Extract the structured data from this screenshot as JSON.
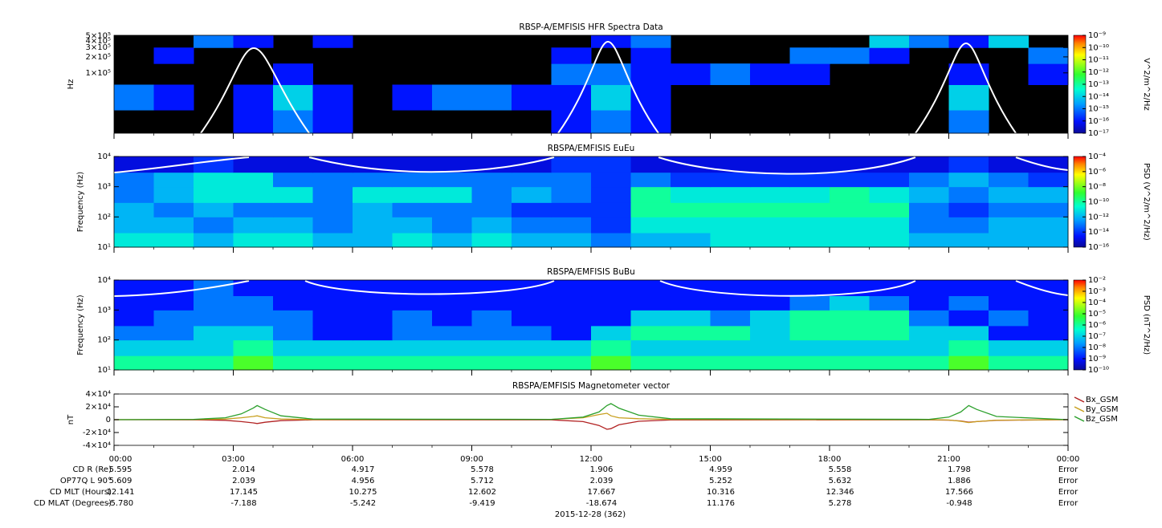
{
  "chart_data": [
    {
      "type": "heatmap",
      "title": "RBSP-A/EMFISIS  HFR Spectra Data",
      "ylabel": "Hz",
      "ylog": true,
      "ylim": [
        7300,
        510000
      ],
      "yticks": [
        {
          "value": 100000,
          "label": "1×10⁵"
        },
        {
          "value": 200000,
          "label": "2×10⁵"
        },
        {
          "value": 300000,
          "label": "3×10⁵"
        },
        {
          "value": 400000,
          "label": "4×10⁵"
        },
        {
          "value": 500000,
          "label": "5×10⁵"
        }
      ],
      "xbins": [
        0,
        1,
        2,
        3,
        4,
        5,
        6,
        7,
        8,
        9,
        10,
        11,
        12,
        13,
        14,
        15,
        16,
        17,
        18,
        19,
        20,
        21,
        22,
        23,
        24
      ],
      "ybins": [
        7300,
        20000,
        60000,
        150000,
        300000,
        510000
      ],
      "z": [
        [
          null,
          null,
          null,
          1e-16,
          1e-15,
          1e-16,
          null,
          null,
          null,
          null,
          null,
          1e-16,
          1e-15,
          1e-16,
          null,
          null,
          null,
          null,
          null,
          null,
          null,
          1e-15,
          null,
          null
        ],
        [
          1e-15,
          1e-16,
          null,
          1e-16,
          1e-14,
          1e-16,
          null,
          1e-16,
          1e-15,
          1e-15,
          1e-16,
          1e-16,
          1e-14,
          1e-16,
          null,
          null,
          null,
          null,
          null,
          null,
          null,
          1e-14,
          null,
          null
        ],
        [
          null,
          null,
          null,
          null,
          1e-16,
          null,
          null,
          null,
          null,
          null,
          null,
          1e-15,
          1e-15,
          1e-16,
          1e-16,
          1e-15,
          1e-16,
          1e-16,
          null,
          null,
          null,
          1e-16,
          null,
          1e-16
        ],
        [
          null,
          1e-16,
          null,
          null,
          null,
          null,
          null,
          null,
          null,
          null,
          null,
          1e-16,
          null,
          1e-16,
          null,
          null,
          null,
          1e-15,
          1e-15,
          1e-16,
          null,
          null,
          null,
          1e-15
        ],
        [
          null,
          null,
          1e-15,
          1e-16,
          null,
          1e-16,
          null,
          null,
          null,
          null,
          null,
          null,
          1e-16,
          1e-15,
          null,
          null,
          null,
          null,
          null,
          1e-14,
          1e-15,
          1e-16,
          1e-14,
          null
        ]
      ],
      "zlog": true,
      "zlim": [
        1e-17,
        1e-09
      ],
      "zlabel": "V^2/m^2/Hz",
      "zticks": [
        {
          "value": 1e-09,
          "label": "10⁻⁹"
        },
        {
          "value": 1e-10,
          "label": "10⁻¹⁰"
        },
        {
          "value": 1e-11,
          "label": "10⁻¹¹"
        },
        {
          "value": 1e-12,
          "label": "10⁻¹²"
        },
        {
          "value": 1e-13,
          "label": "10⁻¹³"
        },
        {
          "value": 1e-14,
          "label": "10⁻¹⁴"
        },
        {
          "value": 1e-15,
          "label": "10⁻¹⁵"
        },
        {
          "value": 1e-16,
          "label": "10⁻¹⁶"
        },
        {
          "value": 1e-17,
          "label": "10⁻¹⁷"
        }
      ]
    },
    {
      "type": "heatmap",
      "title": "RBSPA/EMFISIS  EuEu",
      "ylabel": "Frequency (Hz)",
      "ylog": true,
      "ylim": [
        10,
        10000
      ],
      "yticks": [
        {
          "value": 10,
          "label": "10¹"
        },
        {
          "value": 100,
          "label": "10²"
        },
        {
          "value": 1000,
          "label": "10³"
        },
        {
          "value": 10000,
          "label": "10⁴"
        }
      ],
      "xbins": [
        0,
        1,
        2,
        3,
        4,
        5,
        6,
        7,
        8,
        9,
        10,
        11,
        12,
        13,
        14,
        15,
        16,
        17,
        18,
        19,
        20,
        21,
        22,
        23,
        24
      ],
      "ybins": [
        10,
        30,
        100,
        300,
        1000,
        3000,
        10000
      ],
      "z": [
        [
          1e-11,
          1e-11,
          1e-12,
          1e-11,
          1e-11,
          1e-12,
          1e-12,
          1e-11,
          1e-12,
          1e-11,
          1e-12,
          1e-12,
          1e-13,
          1e-12,
          1e-12,
          1e-11,
          1e-11,
          1e-11,
          1e-11,
          1e-11,
          1e-12,
          1e-12,
          1e-12,
          1e-12
        ],
        [
          1e-12,
          1e-12,
          1e-13,
          1e-12,
          1e-12,
          1e-13,
          1e-12,
          1e-12,
          1e-13,
          1e-12,
          1e-13,
          1e-13,
          1e-14,
          1e-11,
          1e-11,
          1e-11,
          1e-11,
          1e-11,
          1e-11,
          1e-11,
          1e-13,
          1e-13,
          1e-12,
          1e-12
        ],
        [
          1e-12,
          1e-13,
          1e-12,
          1e-13,
          1e-13,
          1e-13,
          1e-12,
          1e-13,
          1e-13,
          1e-13,
          1e-14,
          1e-14,
          1e-14,
          1e-10,
          1e-10,
          1e-10,
          1e-10,
          1e-10,
          1e-10,
          1e-10,
          1e-13,
          1e-14,
          1e-13,
          1e-13
        ],
        [
          1e-13,
          1e-12,
          1e-11,
          1e-11,
          1e-11,
          1e-13,
          1e-11,
          1e-11,
          1e-11,
          1e-13,
          1e-12,
          1e-13,
          1e-14,
          1e-10,
          1e-11,
          1e-11,
          1e-11,
          1e-11,
          1e-10,
          1e-11,
          1e-12,
          1e-13,
          1e-12,
          1e-12
        ],
        [
          1e-13,
          1e-12,
          1e-11,
          1e-11,
          1e-13,
          1e-13,
          1e-13,
          1e-13,
          1e-13,
          1e-13,
          1e-13,
          1e-13,
          1e-14,
          1e-13,
          1e-14,
          1e-14,
          1e-14,
          1e-14,
          1e-14,
          1e-14,
          1e-13,
          1e-12,
          1e-13,
          1e-14
        ],
        [
          1e-15,
          1e-15,
          1e-14,
          1e-15,
          1e-15,
          1e-15,
          1e-15,
          1e-15,
          1e-15,
          1e-15,
          1e-15,
          1e-14,
          1e-14,
          1e-15,
          1e-15,
          1e-15,
          1e-15,
          1e-15,
          1e-15,
          1e-15,
          1e-15,
          1e-14,
          1e-15,
          1e-15
        ]
      ],
      "zlog": true,
      "zlim": [
        1e-16,
        0.0001
      ],
      "zlabel": "PSD (V^2/m^2/Hz)",
      "zticks": [
        {
          "value": 0.0001,
          "label": "10⁻⁴"
        },
        {
          "value": 1e-06,
          "label": "10⁻⁶"
        },
        {
          "value": 1e-08,
          "label": "10⁻⁸"
        },
        {
          "value": 1e-10,
          "label": "10⁻¹⁰"
        },
        {
          "value": 1e-12,
          "label": "10⁻¹²"
        },
        {
          "value": 1e-14,
          "label": "10⁻¹⁴"
        },
        {
          "value": 1e-16,
          "label": "10⁻¹⁶"
        }
      ]
    },
    {
      "type": "heatmap",
      "title": "RBSPA/EMFISIS  BuBu",
      "ylabel": "Frequency (Hz)",
      "ylog": true,
      "ylim": [
        10,
        10000
      ],
      "yticks": [
        {
          "value": 10,
          "label": "10¹"
        },
        {
          "value": 100,
          "label": "10²"
        },
        {
          "value": 1000,
          "label": "10³"
        },
        {
          "value": 10000,
          "label": "10⁴"
        }
      ],
      "xbins": [
        0,
        1,
        2,
        3,
        4,
        5,
        6,
        7,
        8,
        9,
        10,
        11,
        12,
        13,
        14,
        15,
        16,
        17,
        18,
        19,
        20,
        21,
        22,
        23,
        24
      ],
      "ybins": [
        10,
        30,
        100,
        300,
        1000,
        3000,
        10000
      ],
      "z": [
        [
          1e-06,
          1e-06,
          1e-06,
          1e-05,
          1e-06,
          1e-06,
          1e-06,
          1e-06,
          1e-06,
          1e-06,
          1e-06,
          1e-06,
          1e-05,
          1e-06,
          1e-06,
          1e-06,
          1e-06,
          1e-06,
          1e-06,
          1e-06,
          1e-06,
          1e-05,
          1e-06,
          1e-06
        ],
        [
          1e-07,
          1e-07,
          1e-07,
          1e-06,
          1e-07,
          1e-07,
          1e-07,
          1e-07,
          1e-07,
          1e-07,
          1e-07,
          1e-07,
          1e-06,
          1e-07,
          1e-07,
          1e-07,
          1e-07,
          1e-07,
          1e-07,
          1e-07,
          1e-07,
          1e-06,
          1e-07,
          1e-07
        ],
        [
          1e-08,
          1e-08,
          1e-07,
          1e-07,
          1e-08,
          1e-09,
          1e-09,
          1e-08,
          1e-08,
          1e-08,
          1e-08,
          1e-09,
          1e-07,
          1e-06,
          1e-06,
          1e-06,
          1e-07,
          1e-06,
          1e-06,
          1e-06,
          1e-07,
          1e-07,
          1e-09,
          1e-09
        ],
        [
          1e-09,
          1e-08,
          1e-08,
          1e-08,
          1e-08,
          1e-09,
          1e-09,
          1e-08,
          1e-09,
          1e-08,
          1e-09,
          1e-09,
          1e-09,
          1e-07,
          1e-07,
          1e-08,
          1e-07,
          1e-06,
          1e-06,
          1e-06,
          1e-08,
          1e-09,
          1e-08,
          1e-09
        ],
        [
          1e-09,
          1e-09,
          1e-08,
          1e-08,
          1e-09,
          1e-09,
          1e-09,
          1e-09,
          1e-09,
          1e-09,
          1e-09,
          1e-09,
          1e-09,
          1e-09,
          1e-09,
          1e-09,
          1e-09,
          1e-08,
          1e-07,
          1e-08,
          1e-09,
          1e-08,
          1e-09,
          1e-09
        ],
        [
          1e-09,
          1e-09,
          1e-08,
          1e-09,
          1e-09,
          1e-09,
          1e-09,
          1e-09,
          1e-09,
          1e-09,
          1e-09,
          1e-09,
          1e-09,
          1e-09,
          1e-09,
          1e-09,
          1e-09,
          1e-09,
          1e-09,
          1e-09,
          1e-09,
          1e-09,
          1e-09,
          1e-09
        ]
      ],
      "zlog": true,
      "zlim": [
        1e-10,
        0.01
      ],
      "zlabel": "PSD (nT^2/Hz)",
      "zticks": [
        {
          "value": 0.01,
          "label": "10⁻²"
        },
        {
          "value": 0.001,
          "label": "10⁻³"
        },
        {
          "value": 0.0001,
          "label": "10⁻⁴"
        },
        {
          "value": 1e-05,
          "label": "10⁻⁵"
        },
        {
          "value": 1e-06,
          "label": "10⁻⁶"
        },
        {
          "value": 1e-07,
          "label": "10⁻⁷"
        },
        {
          "value": 1e-08,
          "label": "10⁻⁸"
        },
        {
          "value": 1e-09,
          "label": "10⁻⁹"
        },
        {
          "value": 1e-10,
          "label": "10⁻¹⁰"
        }
      ]
    },
    {
      "type": "line",
      "title": "RBSPA/EMFISIS  Magnetometer vector",
      "ylabel": "nT",
      "ylim": [
        -40000,
        40000
      ],
      "yticks": [
        {
          "value": -40000,
          "label": "-4×10⁴"
        },
        {
          "value": -20000,
          "label": "-2×10⁴"
        },
        0,
        {
          "value": 20000,
          "label": "2×10⁴"
        },
        {
          "value": 40000,
          "label": "4×10⁴"
        }
      ],
      "x": [
        0,
        2,
        2.8,
        3.2,
        3.5,
        3.6,
        3.8,
        4.2,
        5,
        11,
        11.8,
        12.2,
        12.4,
        12.5,
        12.7,
        13.2,
        14,
        20.5,
        21,
        21.3,
        21.5,
        21.7,
        22.2,
        24
      ],
      "legend": "right",
      "series": [
        {
          "name": "Bx_GSM",
          "color": "#b22222",
          "values": [
            0,
            -200,
            -1000,
            -3000,
            -5000,
            -6000,
            -4000,
            -1500,
            -300,
            -300,
            -3000,
            -9000,
            -15000,
            -14000,
            -8000,
            -2500,
            -500,
            -200,
            -800,
            -2000,
            -4000,
            -3000,
            -1000,
            0
          ]
        },
        {
          "name": "By_GSM",
          "color": "#c8a020",
          "values": [
            0,
            200,
            1000,
            3000,
            5000,
            6000,
            3000,
            1000,
            200,
            500,
            3000,
            8000,
            10000,
            6000,
            3000,
            1500,
            500,
            0,
            -500,
            -2500,
            -4500,
            -3000,
            -800,
            0
          ]
        },
        {
          "name": "Bz_GSM",
          "color": "#2ca02c",
          "values": [
            0,
            500,
            3000,
            9000,
            18000,
            22000,
            16000,
            6000,
            1000,
            500,
            4000,
            12000,
            22000,
            25000,
            18000,
            7000,
            1500,
            500,
            4000,
            12000,
            22000,
            16000,
            5000,
            0
          ]
        }
      ]
    }
  ],
  "time_axis": {
    "xlim": [
      0,
      24
    ],
    "xticks": [
      {
        "value": 0,
        "label": "00:00"
      },
      {
        "value": 3,
        "label": "03:00"
      },
      {
        "value": 6,
        "label": "06:00"
      },
      {
        "value": 9,
        "label": "09:00"
      },
      {
        "value": 12,
        "label": "12:00"
      },
      {
        "value": 15,
        "label": "15:00"
      },
      {
        "value": 18,
        "label": "18:00"
      },
      {
        "value": 21,
        "label": "21:00"
      },
      {
        "value": 24,
        "label": "00:00"
      }
    ],
    "date": "2015-12-28 (362)"
  },
  "ephemeris": {
    "rows": [
      {
        "label": "CD R (Re)",
        "values": [
          "5.595",
          "2.014",
          "4.917",
          "5.578",
          "1.906",
          "4.959",
          "5.558",
          "1.798",
          "Error"
        ]
      },
      {
        "label": "OP77Q L 90°",
        "values": [
          "5.609",
          "2.039",
          "4.956",
          "5.712",
          "2.039",
          "5.252",
          "5.632",
          "1.886",
          "Error"
        ]
      },
      {
        "label": "CD MLT (Hours)",
        "values": [
          "12.141",
          "17.145",
          "10.275",
          "12.602",
          "17.667",
          "10.316",
          "12.346",
          "17.566",
          "Error"
        ]
      },
      {
        "label": "CD MLAT (Degrees)",
        "values": [
          "-5.780",
          "-7.188",
          "-5.242",
          "-9.419",
          "-18.674",
          "11.176",
          "5.278",
          "-0.948",
          "Error"
        ]
      }
    ]
  }
}
